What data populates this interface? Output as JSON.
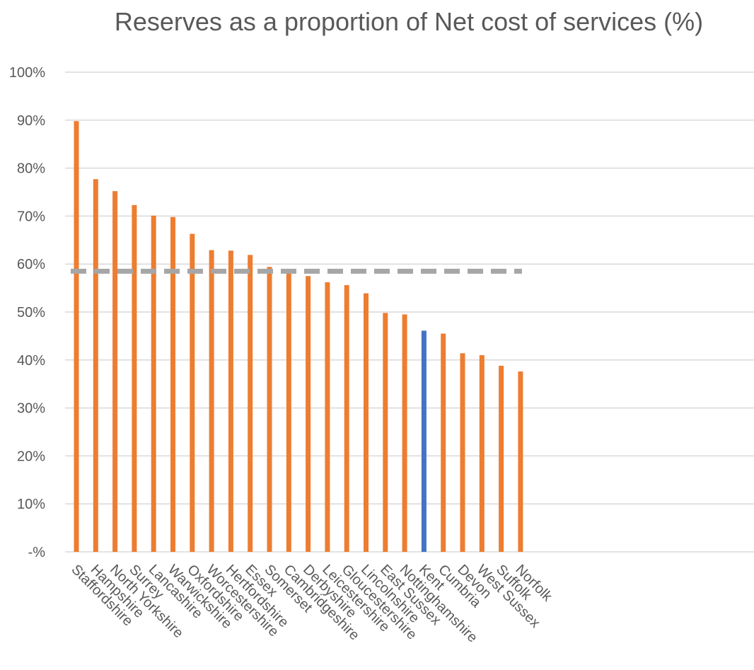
{
  "chart_data": {
    "type": "bar",
    "title": "Reserves as a proportion of Net cost of services (%)",
    "xlabel": "",
    "ylabel": "",
    "ylim": [
      0,
      100
    ],
    "y_tick_values": [
      0,
      10,
      20,
      30,
      40,
      50,
      60,
      70,
      80,
      90,
      100
    ],
    "y_tick_labels": [
      "-%",
      "10%",
      "20%",
      "30%",
      "40%",
      "50%",
      "60%",
      "70%",
      "80%",
      "90%",
      "100%"
    ],
    "grid": true,
    "legend": "none",
    "categories": [
      "Staffordshire",
      "Hampshire",
      "North Yorkshire",
      "Surrey",
      "Lancashire",
      "Warwickshire",
      "Oxfordshire",
      "Worcestershire",
      "Hertfordshire",
      "Essex",
      "Somerset",
      "Cambridgeshire",
      "Derbyshire",
      "Leicestershire",
      "Gloucestershire",
      "Lincolnshire",
      "East Sussex",
      "Nottinghamshire",
      "Kent",
      "Cumbria",
      "Devon",
      "West Sussex",
      "Suffolk",
      "Norfolk"
    ],
    "series": [
      {
        "values": [
          89.8,
          77.7,
          75.2,
          72.3,
          70.1,
          69.8,
          66.3,
          62.9,
          62.8,
          61.9,
          59.4,
          58.3,
          57.5,
          56.2,
          55.6,
          53.9,
          49.8,
          49.5,
          46.1,
          45.5,
          41.4,
          41.0,
          38.8,
          37.6
        ]
      }
    ],
    "highlight_category": "Kent",
    "average_line": {
      "value": 58.5,
      "style": "dashed",
      "color": "#a6a6a6"
    },
    "colors": {
      "bar": "#ed7d31",
      "highlight": "#4472c4",
      "grid": "#d9d9d9",
      "text": "#595959"
    }
  }
}
